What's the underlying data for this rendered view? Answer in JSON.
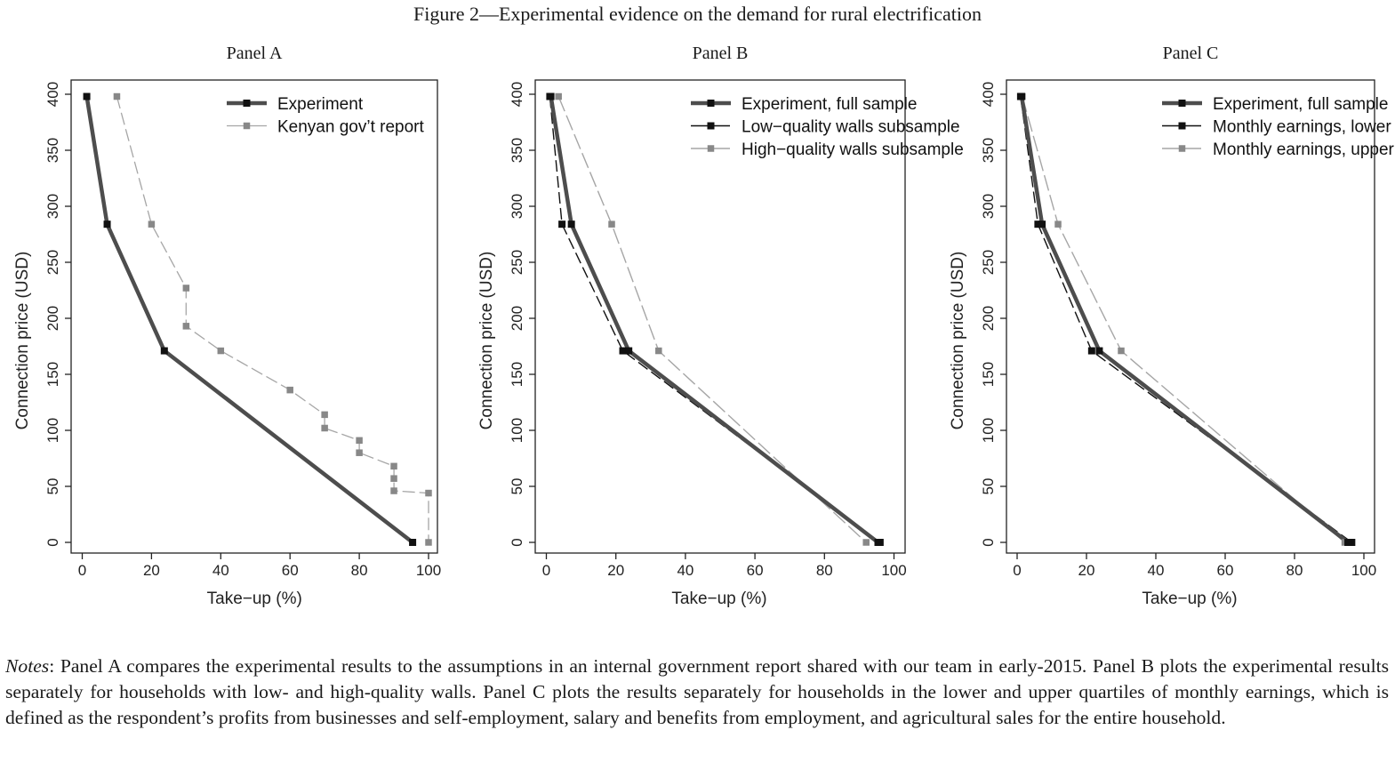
{
  "figure_title": "Figure 2—Experimental evidence on the demand for rural electrification",
  "notes": {
    "label": "Notes",
    "text": ": Panel A compares the experimental results to the assumptions in an internal government report shared with our team in early-2015. Panel B plots the experimental results separately for households with low- and high-quality walls. Panel C plots the results separately for households in the lower and upper quartiles of monthly earnings, which is defined as the respondent’s profits from businesses and self-employment, salary and benefits from employment, and agricultural sales for the entire household."
  },
  "colors": {
    "experiment": "#4d4d4d",
    "black": "#111111",
    "gray_dash": "#a6a6a6",
    "gray_marker": "#888888",
    "axis": "#222222"
  },
  "chart_data": [
    {
      "type": "line",
      "title": "Panel A",
      "xlabel": "Take−up (%)",
      "ylabel": "Connection price (USD)",
      "xlim": [
        0,
        100
      ],
      "ylim": [
        0,
        400
      ],
      "xticks": [
        "0",
        "20",
        "40",
        "60",
        "80",
        "100"
      ],
      "yticks": [
        "0",
        "50",
        "100",
        "150",
        "200",
        "250",
        "300",
        "350",
        "400"
      ],
      "legend_position": "top-right",
      "grid": false,
      "series": [
        {
          "name": "Experiment",
          "style": "experiment",
          "x": [
            1.3,
            7.2,
            23.7,
            95.4
          ],
          "y": [
            398,
            284,
            171,
            0
          ]
        },
        {
          "name": "Kenyan gov’t report",
          "style": "gray_dash_solid",
          "x": [
            10,
            20,
            30,
            30,
            40,
            60,
            70,
            70,
            80,
            80,
            90,
            90,
            90,
            100,
            100
          ],
          "y": [
            398,
            284,
            227,
            193,
            171,
            136,
            114,
            102,
            91,
            80,
            68,
            57,
            46,
            44,
            0
          ]
        }
      ]
    },
    {
      "type": "line",
      "title": "Panel B",
      "xlabel": "Take−up (%)",
      "ylabel": "Connection price (USD)",
      "xlim": [
        0,
        100
      ],
      "ylim": [
        0,
        400
      ],
      "xticks": [
        "0",
        "20",
        "40",
        "60",
        "80",
        "100"
      ],
      "yticks": [
        "0",
        "50",
        "100",
        "150",
        "200",
        "250",
        "300",
        "350",
        "400"
      ],
      "legend_position": "top-right",
      "grid": false,
      "series": [
        {
          "name": "Experiment, full sample",
          "style": "experiment",
          "x": [
            1.3,
            7.2,
            23.7,
            95.4
          ],
          "y": [
            398,
            284,
            171,
            0
          ]
        },
        {
          "name": "Low−quality walls subsample",
          "style": "black_dash",
          "x": [
            1.0,
            4.5,
            22.0,
            96.0
          ],
          "y": [
            398,
            284,
            171,
            0
          ]
        },
        {
          "name": "High−quality walls subsample",
          "style": "gray_longdash",
          "x": [
            3.5,
            18.8,
            32.3,
            92.0
          ],
          "y": [
            398,
            284,
            171,
            0
          ]
        }
      ]
    },
    {
      "type": "line",
      "title": "Panel C",
      "xlabel": "Take−up (%)",
      "ylabel": "Connection price (USD)",
      "xlim": [
        0,
        100
      ],
      "ylim": [
        0,
        400
      ],
      "xticks": [
        "0",
        "20",
        "40",
        "60",
        "80",
        "100"
      ],
      "yticks": [
        "0",
        "50",
        "100",
        "150",
        "200",
        "250",
        "300",
        "350",
        "400"
      ],
      "legend_position": "top-right",
      "grid": false,
      "series": [
        {
          "name": "Experiment, full sample",
          "style": "experiment",
          "x": [
            1.3,
            7.2,
            23.7,
            95.4
          ],
          "y": [
            398,
            284,
            171,
            0
          ]
        },
        {
          "name": "Monthly earnings, lower quartile",
          "style": "black_dash",
          "x": [
            1.0,
            6.0,
            21.5,
            96.5
          ],
          "y": [
            398,
            284,
            171,
            0
          ]
        },
        {
          "name": "Monthly earnings, upper quartile",
          "style": "gray_longdash",
          "x": [
            1.5,
            11.8,
            30.0,
            94.5
          ],
          "y": [
            398,
            284,
            171,
            0
          ]
        }
      ]
    }
  ]
}
